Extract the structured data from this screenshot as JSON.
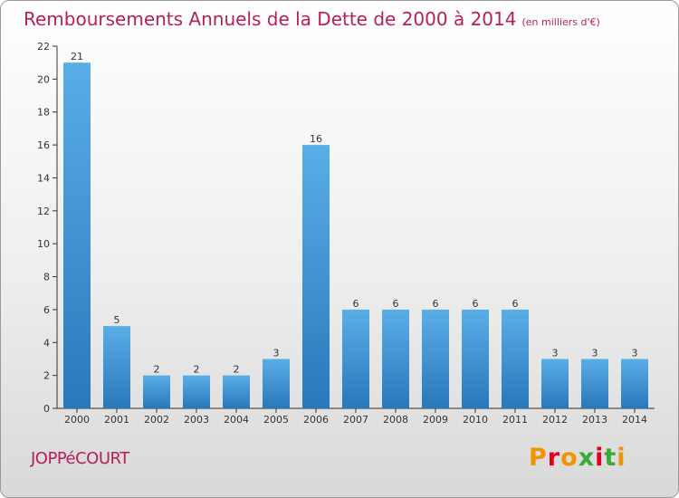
{
  "header": {
    "title": "Remboursements Annuels de la Dette de 2000 à 2014",
    "unit": "(en milliers d'€)"
  },
  "footer": {
    "commune": "JOPPéCOURT",
    "brand": "Proxiti"
  },
  "colors": {
    "title": "#b51f5a",
    "bar_top": "#5aaee6",
    "bar_bottom": "#2878bc",
    "axis": "#333333",
    "brand_letters": [
      "#f29400",
      "#e2001a",
      "#f29400",
      "#3aa935",
      "#e2001a",
      "#3aa935",
      "#f29400"
    ]
  },
  "chart_data": {
    "type": "bar",
    "categories": [
      "2000",
      "2001",
      "2002",
      "2003",
      "2004",
      "2005",
      "2006",
      "2007",
      "2008",
      "2009",
      "2010",
      "2011",
      "2012",
      "2013",
      "2014"
    ],
    "values": [
      21,
      5,
      2,
      2,
      2,
      3,
      16,
      6,
      6,
      6,
      6,
      6,
      3,
      3,
      3
    ],
    "title": "Remboursements Annuels de la Dette de 2000 à 2014",
    "xlabel": "",
    "ylabel": "",
    "ylim": [
      0,
      22
    ],
    "yticks": [
      0,
      2,
      4,
      6,
      8,
      10,
      12,
      14,
      16,
      18,
      20,
      22
    ],
    "grid": false,
    "data_labels": true
  }
}
